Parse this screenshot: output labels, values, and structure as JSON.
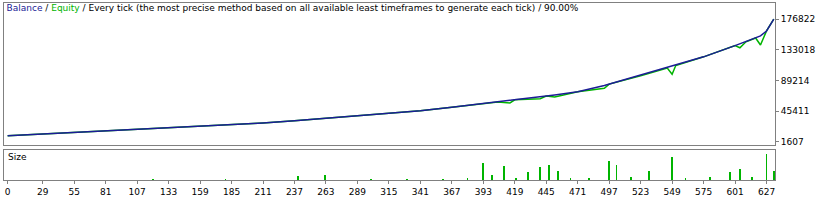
{
  "chart_data": [
    {
      "type": "line",
      "title": "Balance / Equity / Every tick (the most precise method based on all available least timeframes to generate each tick) / 90.00%",
      "x": [
        0,
        29,
        55,
        81,
        107,
        133,
        159,
        185,
        211,
        237,
        263,
        289,
        315,
        341,
        367,
        393,
        405,
        415,
        419,
        440,
        445,
        452,
        471,
        493,
        497,
        523,
        545,
        549,
        552,
        575,
        601,
        605,
        610,
        618,
        622,
        627,
        633
      ],
      "series": [
        {
          "name": "Balance",
          "color": "#1c1c96",
          "values": [
            10000,
            12500,
            14500,
            16500,
            18800,
            21000,
            23500,
            26000,
            28500,
            31500,
            35000,
            38500,
            42000,
            46000,
            51000,
            56000,
            58500,
            60500,
            61500,
            66000,
            67000,
            68500,
            73000,
            82000,
            84000,
            96000,
            107000,
            109000,
            110500,
            123000,
            139000,
            141500,
            144500,
            150000,
            153000,
            160000,
            176822
          ]
        },
        {
          "name": "Equity",
          "color": "#00b400",
          "values": [
            10000,
            12500,
            14500,
            16500,
            18800,
            21000,
            23500,
            26000,
            28500,
            31500,
            35000,
            38500,
            42000,
            46000,
            51000,
            56000,
            58500,
            57000,
            61500,
            63000,
            67000,
            65500,
            73000,
            78000,
            84000,
            96000,
            107000,
            98000,
            110500,
            123000,
            139000,
            136000,
            144500,
            150000,
            140000,
            160000,
            176822
          ]
        }
      ],
      "xlim": [
        -3,
        634
      ],
      "ylim": [
        -2500,
        200000
      ],
      "yticks": [
        1607,
        45411,
        89214,
        133018,
        176822
      ],
      "grid": false,
      "tick_labels": "y"
    },
    {
      "type": "bar",
      "title": "Size",
      "x": [
        120,
        180,
        240,
        262,
        300,
        330,
        360,
        380,
        393,
        400,
        410,
        420,
        430,
        440,
        447,
        455,
        465,
        480,
        497,
        503,
        515,
        530,
        549,
        560,
        580,
        597,
        605,
        615,
        627,
        633
      ],
      "values": [
        0.3,
        0.3,
        1.2,
        1.5,
        0.4,
        0.5,
        0.4,
        0.6,
        5.6,
        1.5,
        4.7,
        0.8,
        2.5,
        4.4,
        5.0,
        3.1,
        0.6,
        0.8,
        6.2,
        5.0,
        0.9,
        3.1,
        7.5,
        0.8,
        0.9,
        2.5,
        3.8,
        0.9,
        8.7,
        3.1
      ],
      "color": "#00b400",
      "xlim": [
        -3,
        634
      ],
      "ylim": [
        0,
        10
      ],
      "xticks": [
        0,
        29,
        55,
        81,
        107,
        133,
        159,
        185,
        211,
        237,
        263,
        289,
        315,
        341,
        367,
        393,
        419,
        445,
        471,
        497,
        523,
        549,
        575,
        601,
        627
      ],
      "tick_labels": "x"
    }
  ]
}
